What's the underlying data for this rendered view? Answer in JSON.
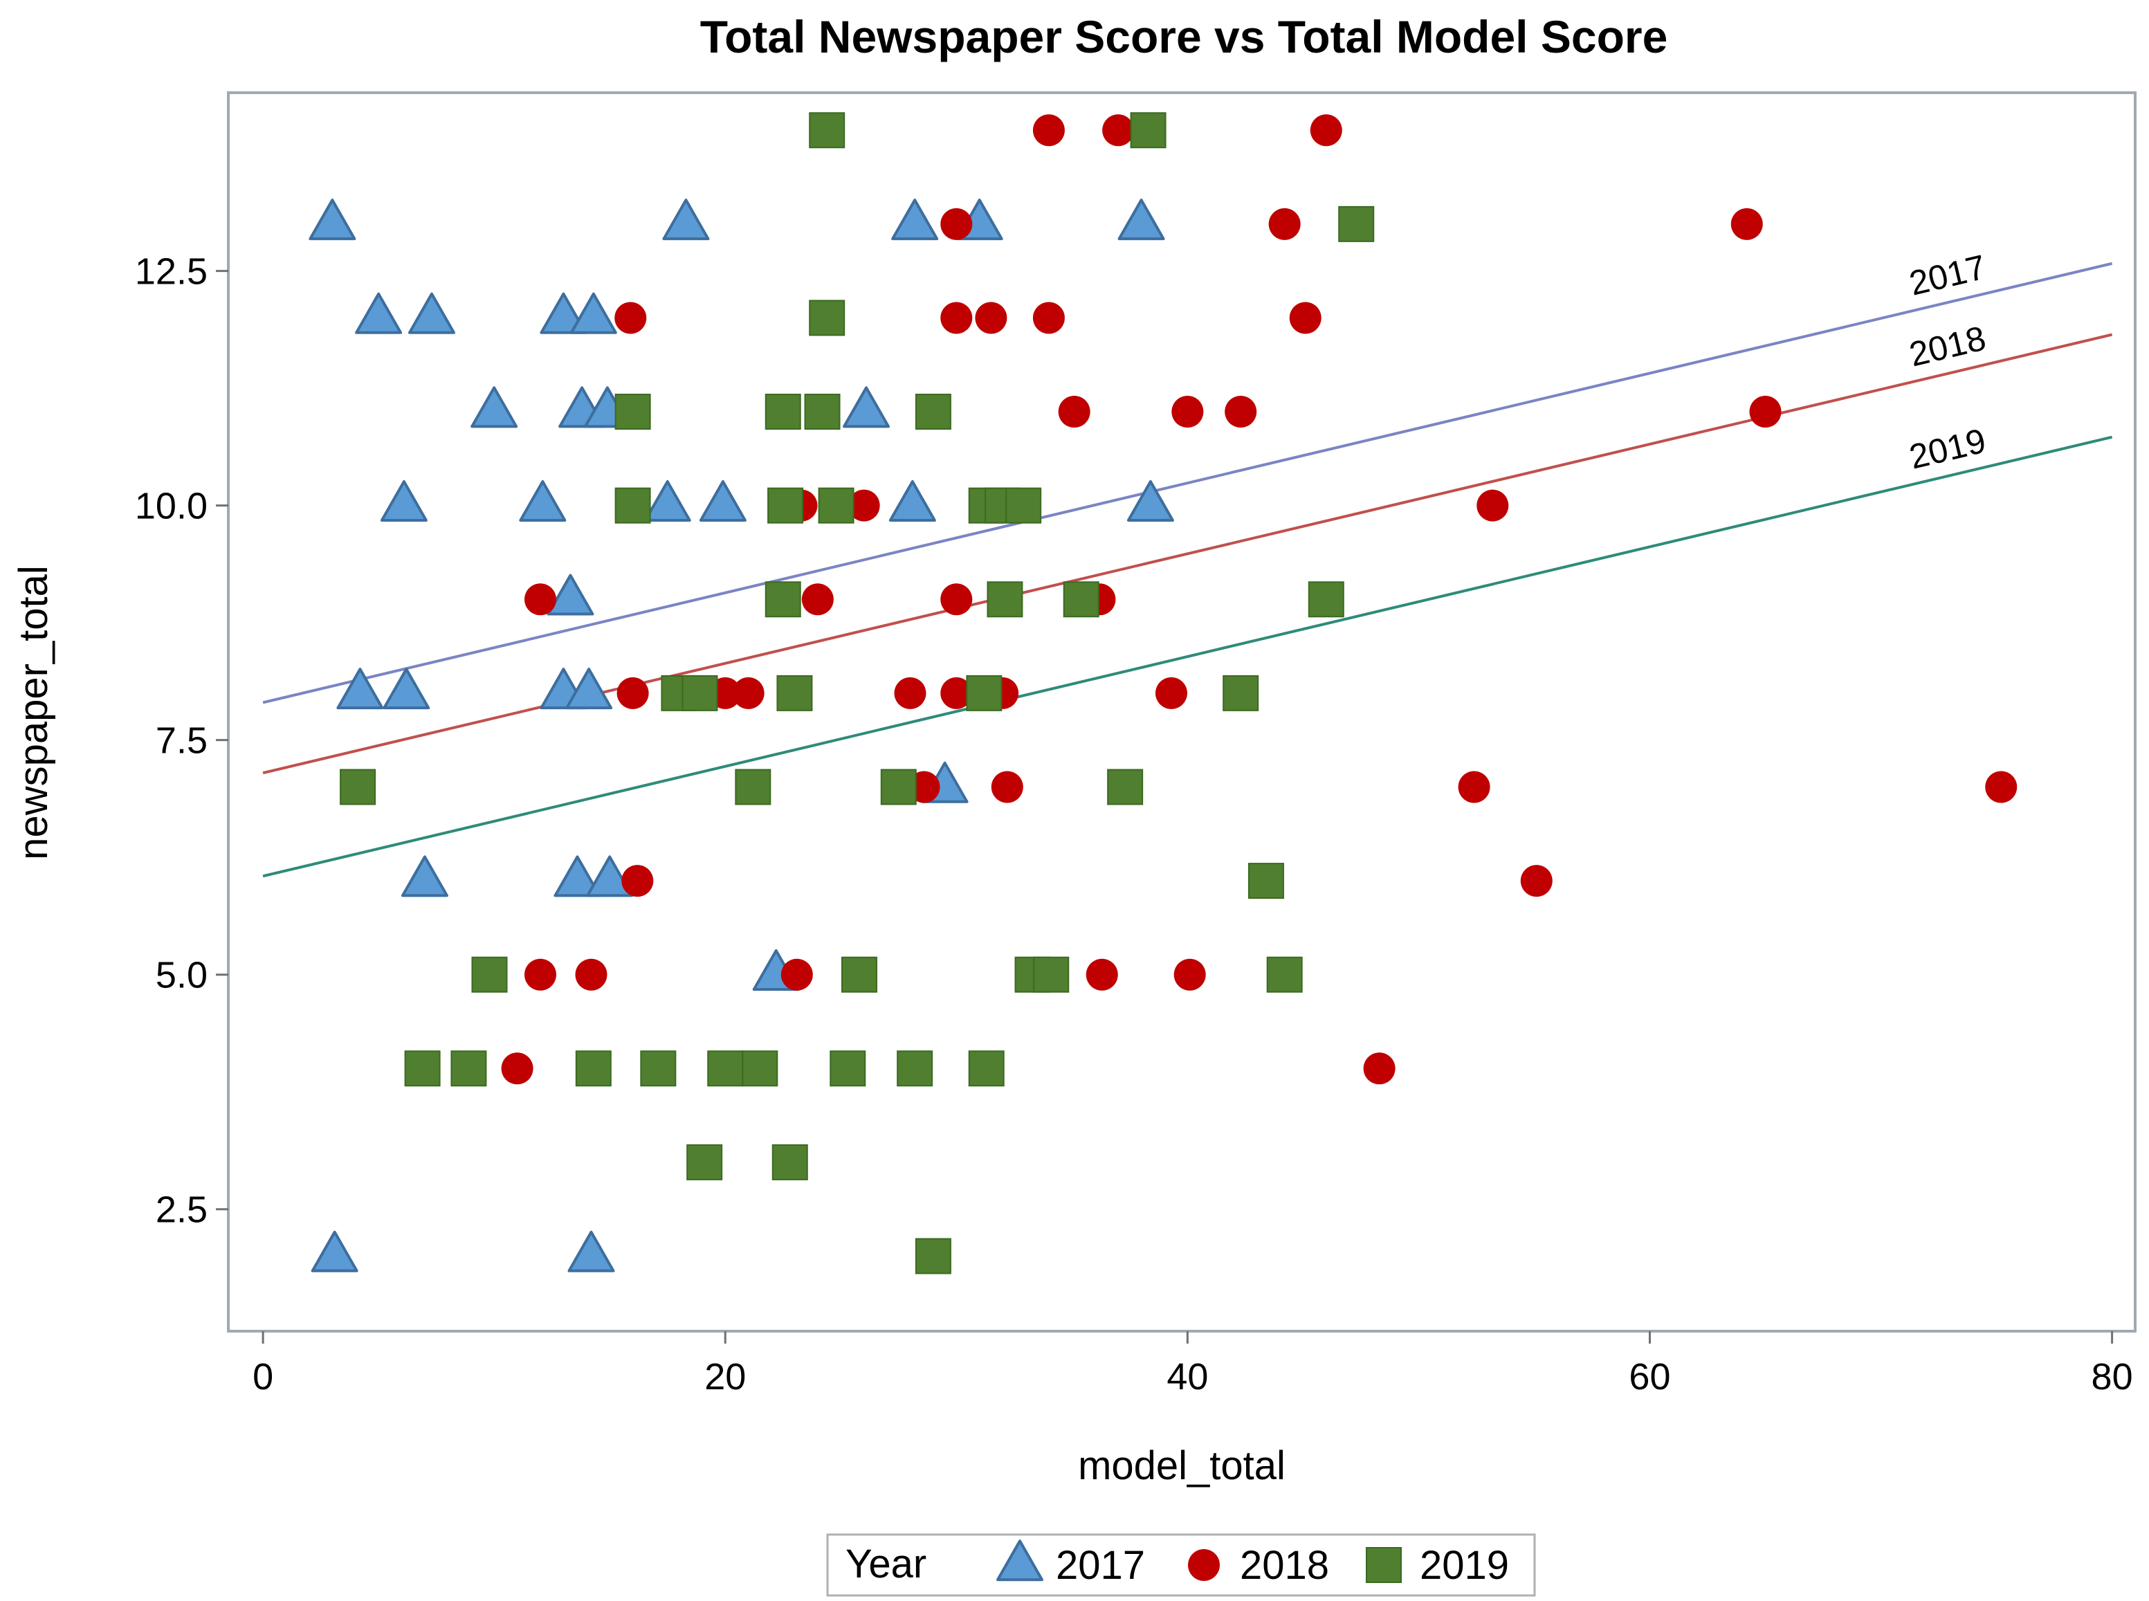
{
  "chart_data": {
    "type": "scatter",
    "title": "Total Newspaper Score vs Total Model Score",
    "xlabel": "model_total",
    "ylabel": "newspaper_total",
    "xlim": [
      -1.5,
      81
    ],
    "ylim": [
      1.2,
      14.4
    ],
    "x_ticks": [
      0,
      20,
      40,
      60,
      80
    ],
    "x_tick_labels": [
      "0",
      "20",
      "40",
      "60",
      "80"
    ],
    "y_ticks": [
      2.5,
      5.0,
      7.5,
      10.0,
      12.5
    ],
    "y_tick_labels": [
      "2.5",
      "5.0",
      "7.5",
      "10.0",
      "12.5"
    ],
    "grid": false,
    "legend": {
      "placement": "bottom-center",
      "title": "Year",
      "entries": [
        "2017",
        "2018",
        "2019"
      ]
    },
    "series": [
      {
        "name": "2017",
        "marker": "triangle",
        "color": "#5B9BD5",
        "edge_color": "#3D6E9E",
        "line_color": "#7B84C4",
        "fit": {
          "intercept": 7.9,
          "slope": 0.0585
        },
        "points": [
          [
            3,
            13
          ],
          [
            18.3,
            13
          ],
          [
            28.2,
            13
          ],
          [
            31,
            13
          ],
          [
            38,
            13
          ],
          [
            5,
            12
          ],
          [
            7.3,
            12
          ],
          [
            13,
            12
          ],
          [
            14.3,
            12
          ],
          [
            10,
            11
          ],
          [
            13.8,
            11
          ],
          [
            14.9,
            11
          ],
          [
            26.1,
            11
          ],
          [
            6.1,
            10
          ],
          [
            12.1,
            10
          ],
          [
            17.5,
            10
          ],
          [
            19.9,
            10
          ],
          [
            28.1,
            10
          ],
          [
            38.4,
            10
          ],
          [
            13.3,
            9
          ],
          [
            4.2,
            8
          ],
          [
            6.2,
            8
          ],
          [
            13,
            8
          ],
          [
            14.1,
            8
          ],
          [
            29.5,
            7
          ],
          [
            7,
            6
          ],
          [
            13.6,
            6
          ],
          [
            15,
            6
          ],
          [
            22.2,
            5
          ],
          [
            3.1,
            2
          ],
          [
            14.2,
            2
          ]
        ]
      },
      {
        "name": "2018",
        "marker": "circle",
        "color": "#C00000",
        "edge_color": "#C00000",
        "line_color": "#C0504D",
        "fit": {
          "intercept": 7.15,
          "slope": 0.0584
        },
        "points": [
          [
            34,
            14
          ],
          [
            37,
            14
          ],
          [
            46,
            14
          ],
          [
            30,
            13
          ],
          [
            44.2,
            13
          ],
          [
            64.2,
            13
          ],
          [
            15.9,
            12
          ],
          [
            30,
            12
          ],
          [
            31.5,
            12
          ],
          [
            34,
            12
          ],
          [
            45.1,
            12
          ],
          [
            35.1,
            11
          ],
          [
            40,
            11
          ],
          [
            42.3,
            11
          ],
          [
            65,
            11
          ],
          [
            23.3,
            10
          ],
          [
            26,
            10
          ],
          [
            53.2,
            10
          ],
          [
            12,
            9
          ],
          [
            24,
            9
          ],
          [
            30,
            9
          ],
          [
            36.2,
            9
          ],
          [
            16,
            8
          ],
          [
            20,
            8
          ],
          [
            21,
            8
          ],
          [
            28,
            8
          ],
          [
            30,
            8
          ],
          [
            32,
            8
          ],
          [
            39.3,
            8
          ],
          [
            28.6,
            7
          ],
          [
            32.2,
            7
          ],
          [
            52.4,
            7
          ],
          [
            75.2,
            7
          ],
          [
            16.2,
            6
          ],
          [
            55.1,
            6
          ],
          [
            12,
            5
          ],
          [
            14.2,
            5
          ],
          [
            23.1,
            5
          ],
          [
            36.3,
            5
          ],
          [
            40.1,
            5
          ],
          [
            11,
            4
          ],
          [
            48.3,
            4
          ]
        ]
      },
      {
        "name": "2019",
        "marker": "square",
        "color": "#4F7F2F",
        "edge_color": "#3B6A20",
        "line_color": "#2E8B7A",
        "fit": {
          "intercept": 6.05,
          "slope": 0.0585
        },
        "points": [
          [
            24.4,
            14
          ],
          [
            38.3,
            14
          ],
          [
            47.3,
            13
          ],
          [
            24.4,
            12
          ],
          [
            16,
            11
          ],
          [
            22.5,
            11
          ],
          [
            24.2,
            11
          ],
          [
            29,
            11
          ],
          [
            16,
            10
          ],
          [
            22.6,
            10
          ],
          [
            24.8,
            10
          ],
          [
            31.3,
            10
          ],
          [
            32,
            10
          ],
          [
            32.9,
            10
          ],
          [
            22.5,
            9
          ],
          [
            32.1,
            9
          ],
          [
            35.4,
            9
          ],
          [
            46,
            9
          ],
          [
            18,
            8
          ],
          [
            18.9,
            8
          ],
          [
            23,
            8
          ],
          [
            31.2,
            8
          ],
          [
            42.3,
            8
          ],
          [
            4.1,
            7
          ],
          [
            21.2,
            7
          ],
          [
            27.5,
            7
          ],
          [
            37.3,
            7
          ],
          [
            43.4,
            6
          ],
          [
            9.8,
            5
          ],
          [
            25.8,
            5
          ],
          [
            33.3,
            5
          ],
          [
            34.1,
            5
          ],
          [
            44.2,
            5
          ],
          [
            6.9,
            4
          ],
          [
            8.9,
            4
          ],
          [
            14.3,
            4
          ],
          [
            17.1,
            4
          ],
          [
            20,
            4
          ],
          [
            21.5,
            4
          ],
          [
            25.3,
            4
          ],
          [
            28.2,
            4
          ],
          [
            31.3,
            4
          ],
          [
            19.1,
            3
          ],
          [
            22.8,
            3
          ],
          [
            29,
            2
          ]
        ]
      }
    ]
  }
}
